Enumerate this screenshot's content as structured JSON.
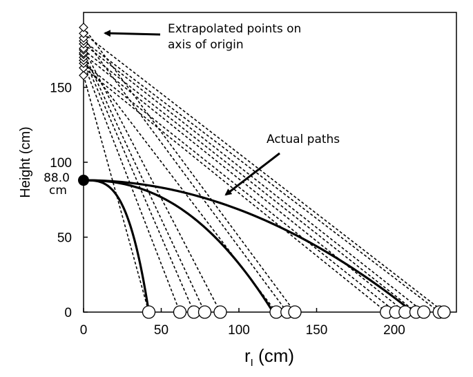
{
  "chart_data": {
    "type": "line",
    "title": "",
    "xlabel_main": "r",
    "xlabel_sub": "I",
    "xlabel_unit": " (cm)",
    "ylabel": "Height (cm)",
    "xlim": [
      0,
      240
    ],
    "ylim": [
      0,
      200
    ],
    "x_ticks": [
      {
        "value": 0,
        "label": "0"
      },
      {
        "value": 50,
        "label": "50"
      },
      {
        "value": 100,
        "label": "100"
      },
      {
        "value": 150,
        "label": "150"
      },
      {
        "value": 200,
        "label": "200"
      }
    ],
    "y_ticks": [
      {
        "value": 0,
        "label": "0"
      },
      {
        "value": 50,
        "label": "50"
      },
      {
        "value": 100,
        "label": "100"
      },
      {
        "value": 150,
        "label": "150"
      }
    ],
    "launch_point": {
      "x": 0,
      "y": 88.0,
      "label_value": "88.0",
      "label_unit": "cm"
    },
    "annotations": {
      "extrapolated_line1": "Extrapolated points on",
      "extrapolated_line2": "axis of origin",
      "actual_paths": "Actual paths"
    },
    "series": [
      {
        "name": "Actual paths",
        "style": "solid",
        "curves": [
          {
            "end_x": 42,
            "power": 3.2
          },
          {
            "end_x": 122,
            "power": 2.3
          },
          {
            "end_x": 212,
            "power": 2.0
          }
        ]
      },
      {
        "name": "Extrapolated paths",
        "style": "dotted",
        "lines": [
          {
            "y0": 158,
            "x_end": 42
          },
          {
            "y0": 166,
            "x_end": 62
          },
          {
            "y0": 170,
            "x_end": 71
          },
          {
            "y0": 173,
            "x_end": 78
          },
          {
            "y0": 176,
            "x_end": 88
          },
          {
            "y0": 168,
            "x_end": 124
          },
          {
            "y0": 183,
            "x_end": 131
          },
          {
            "y0": 190,
            "x_end": 136
          },
          {
            "y0": 163,
            "x_end": 195
          },
          {
            "y0": 166,
            "x_end": 201
          },
          {
            "y0": 172,
            "x_end": 207
          },
          {
            "y0": 175,
            "x_end": 214
          },
          {
            "y0": 179,
            "x_end": 219
          },
          {
            "y0": 181,
            "x_end": 229
          },
          {
            "y0": 186,
            "x_end": 232
          }
        ]
      }
    ],
    "landing_points_x": [
      42,
      62,
      71,
      78,
      88,
      124,
      131,
      136,
      195,
      201,
      207,
      214,
      219,
      229,
      232
    ],
    "origin_points_y": [
      158,
      163,
      166,
      168,
      170,
      172,
      173,
      175,
      176,
      179,
      181,
      183,
      186,
      190
    ]
  }
}
